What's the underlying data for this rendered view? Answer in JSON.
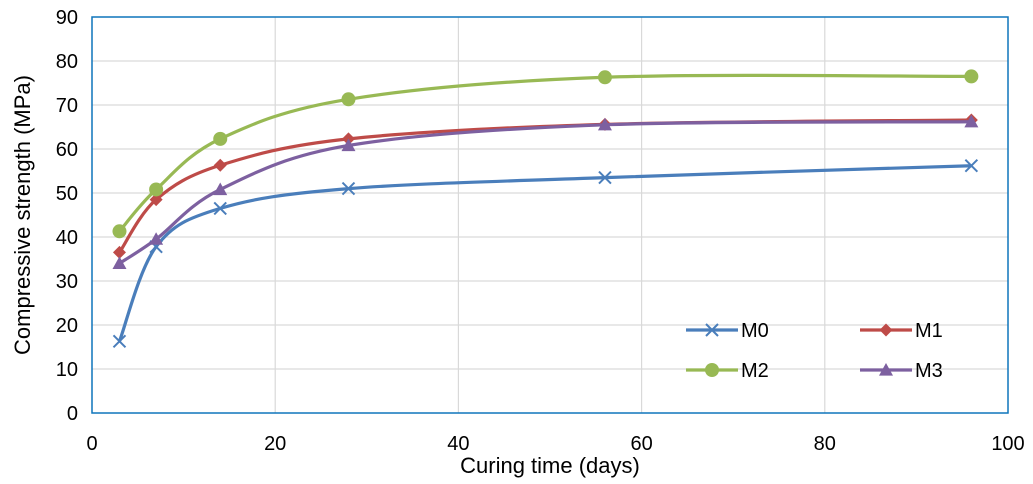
{
  "chart_data": {
    "type": "line",
    "title": "",
    "xlabel": "Curing time (days)",
    "ylabel": "Compressive strength (MPa)",
    "xlim": [
      0,
      100
    ],
    "ylim": [
      0,
      90
    ],
    "xticks": [
      0,
      20,
      40,
      60,
      80,
      100
    ],
    "yticks": [
      0,
      10,
      20,
      30,
      40,
      50,
      60,
      70,
      80,
      90
    ],
    "grid": true,
    "legend_position": "bottom-right",
    "x": [
      3,
      7,
      14,
      28,
      56,
      96
    ],
    "series": [
      {
        "name": "M0",
        "values": [
          16.3,
          37.8,
          46.5,
          51.0,
          53.5,
          56.2
        ],
        "color": "#4a7ebb",
        "marker": "x"
      },
      {
        "name": "M1",
        "values": [
          36.5,
          48.5,
          56.3,
          62.3,
          65.6,
          66.6
        ],
        "color": "#be4b48",
        "marker": "diamond"
      },
      {
        "name": "M2",
        "values": [
          41.3,
          50.8,
          62.3,
          71.3,
          76.3,
          76.5
        ],
        "color": "#98b954",
        "marker": "circle"
      },
      {
        "name": "M3",
        "values": [
          34.0,
          39.5,
          50.8,
          60.8,
          65.5,
          66.2
        ],
        "color": "#7d60a0",
        "marker": "triangle"
      }
    ]
  }
}
